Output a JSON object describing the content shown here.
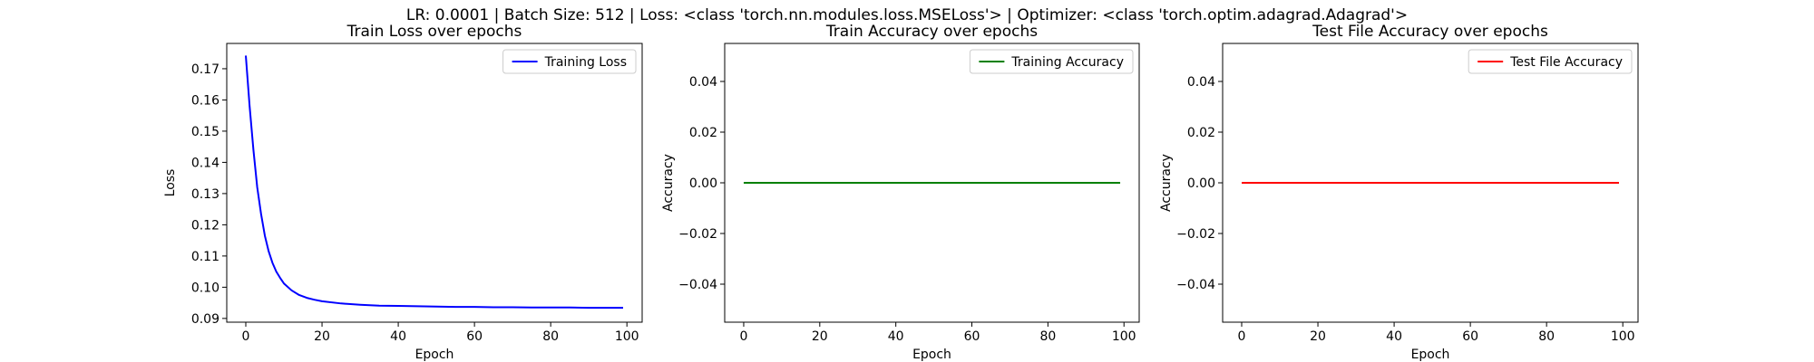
{
  "figure": {
    "suptitle": "LR: 0.0001 | Batch Size: 512 | Loss: <class 'torch.nn.modules.loss.MSELoss'> | Optimizer: <class 'torch.optim.adagrad.Adagrad'>"
  },
  "chart_data": [
    {
      "type": "line",
      "title": "Train Loss over epochs",
      "xlabel": "Epoch",
      "ylabel": "Loss",
      "xlim": [
        -5,
        104
      ],
      "ylim": [
        0.0888,
        0.1781
      ],
      "xticks": [
        0,
        20,
        40,
        60,
        80,
        100
      ],
      "xtick_labels": [
        "0",
        "20",
        "40",
        "60",
        "80",
        "100"
      ],
      "yticks": [
        0.09,
        0.1,
        0.11,
        0.12,
        0.13,
        0.14,
        0.15,
        0.16,
        0.17
      ],
      "ytick_labels": [
        "0.09",
        "0.10",
        "0.11",
        "0.12",
        "0.13",
        "0.14",
        "0.15",
        "0.16",
        "0.17"
      ],
      "grid": false,
      "legend": "upper right",
      "series": [
        {
          "name": "Training Loss",
          "color": "#0000ff",
          "x": [
            0,
            1,
            2,
            3,
            4,
            5,
            6,
            7,
            8,
            9,
            10,
            12,
            14,
            16,
            18,
            20,
            25,
            30,
            35,
            40,
            45,
            50,
            55,
            60,
            65,
            70,
            75,
            80,
            85,
            90,
            95,
            99
          ],
          "values": [
            0.1742,
            0.158,
            0.144,
            0.132,
            0.1235,
            0.1165,
            0.1115,
            0.1078,
            0.105,
            0.103,
            0.1012,
            0.099,
            0.0975,
            0.0966,
            0.096,
            0.0955,
            0.0948,
            0.0944,
            0.0941,
            0.094,
            0.0939,
            0.0938,
            0.0937,
            0.0937,
            0.0936,
            0.0936,
            0.0935,
            0.0935,
            0.0935,
            0.0934,
            0.0934,
            0.0934
          ]
        }
      ]
    },
    {
      "type": "line",
      "title": "Train Accuracy over epochs",
      "xlabel": "Epoch",
      "ylabel": "Accuracy",
      "xlim": [
        -5,
        104
      ],
      "ylim": [
        -0.055,
        0.055
      ],
      "xticks": [
        0,
        20,
        40,
        60,
        80,
        100
      ],
      "xtick_labels": [
        "0",
        "20",
        "40",
        "60",
        "80",
        "100"
      ],
      "yticks": [
        -0.04,
        -0.02,
        0.0,
        0.02,
        0.04
      ],
      "ytick_labels": [
        "−0.04",
        "−0.02",
        "0.00",
        "0.02",
        "0.04"
      ],
      "grid": false,
      "legend": "upper right",
      "series": [
        {
          "name": "Training Accuracy",
          "color": "#008000",
          "x": [
            0,
            99
          ],
          "values": [
            0,
            0
          ]
        }
      ]
    },
    {
      "type": "line",
      "title": "Test File Accuracy over epochs",
      "xlabel": "Epoch",
      "ylabel": "Accuracy",
      "xlim": [
        -5,
        104
      ],
      "ylim": [
        -0.055,
        0.055
      ],
      "xticks": [
        0,
        20,
        40,
        60,
        80,
        100
      ],
      "xtick_labels": [
        "0",
        "20",
        "40",
        "60",
        "80",
        "100"
      ],
      "yticks": [
        -0.04,
        -0.02,
        0.0,
        0.02,
        0.04
      ],
      "ytick_labels": [
        "−0.04",
        "−0.02",
        "0.00",
        "0.02",
        "0.04"
      ],
      "grid": false,
      "legend": "upper right",
      "series": [
        {
          "name": "Test File Accuracy",
          "color": "#ff0000",
          "x": [
            0,
            99
          ],
          "values": [
            0,
            0
          ]
        }
      ]
    }
  ]
}
